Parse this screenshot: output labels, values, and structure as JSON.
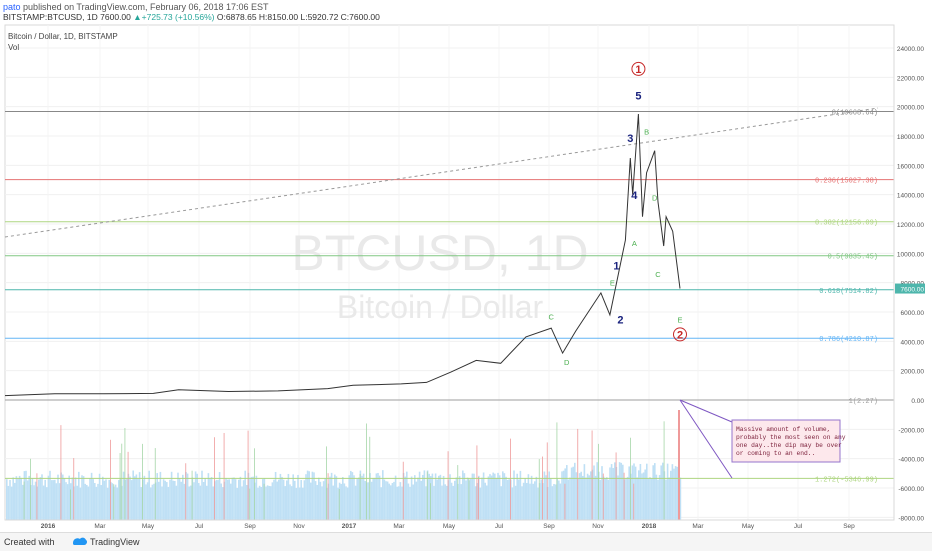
{
  "header": {
    "author": "pato",
    "published": "published on TradingView.com, February 06, 2018 17:06 EST",
    "symbol": "BITSTAMP:BTCUSD, 1D",
    "last": "7600.00",
    "change": "▲+725.73 (+10.56%)",
    "ohlc": "O:6878.65 H:8150.00 L:5920.72 C:7600.00"
  },
  "legend": {
    "series": "Bitcoin / Dollar, 1D, BITSTAMP",
    "volume": "Vol"
  },
  "watermark": {
    "symbol": "BTCUSD, 1D",
    "name": "Bitcoin / Dollar"
  },
  "footer": {
    "created": "Created with",
    "brand": "TradingView"
  },
  "annotation": {
    "text": [
      "Massive amount of volume,",
      "probably the most seen on any",
      "one day..the dip may be over",
      "or coming to an end.."
    ]
  },
  "chart_data": {
    "type": "line",
    "price_axis": {
      "ticks": [
        "24000.00",
        "22000.00",
        "20000.00",
        "18000.00",
        "16000.00",
        "14000.00",
        "12000.00",
        "10000.00",
        "8000.00",
        "6000.00",
        "4000.00",
        "2000.00",
        "0.00",
        "-2000.00",
        "-4000.00",
        "-6000.00",
        "-8000.00"
      ],
      "ylim": [
        -8000,
        24000
      ],
      "last_price_label": "7600.00"
    },
    "time_axis": {
      "ticks": [
        "2016",
        "Mar",
        "May",
        "Jul",
        "Sep",
        "Nov",
        "2017",
        "Mar",
        "May",
        "Jul",
        "Sep",
        "Nov",
        "2018",
        "Mar",
        "May",
        "Jul",
        "Sep"
      ]
    },
    "price": {
      "x": [
        "2015-11",
        "2016-01",
        "2016-03",
        "2016-05",
        "2016-06",
        "2016-08",
        "2016-10",
        "2016-12",
        "2017-01",
        "2017-03",
        "2017-04",
        "2017-05",
        "2017-06",
        "2017-07",
        "2017-08",
        "2017-09",
        "2017-09-15",
        "2017-10",
        "2017-11",
        "2017-11-12",
        "2017-12-01",
        "2017-12-07",
        "2017-12-10",
        "2017-12-17",
        "2017-12-22",
        "2017-12-27",
        "2018-01-06",
        "2018-01-10",
        "2018-01-17",
        "2018-01-20",
        "2018-01-28",
        "2018-02-06"
      ],
      "y": [
        300,
        430,
        420,
        450,
        700,
        580,
        620,
        780,
        1000,
        1100,
        1200,
        1900,
        2700,
        2500,
        4300,
        4900,
        3200,
        4700,
        7300,
        5800,
        10900,
        16500,
        14000,
        19500,
        12500,
        15500,
        17000,
        13500,
        10500,
        12500,
        11500,
        7600
      ]
    },
    "fib_levels": [
      {
        "label": "0(19668.64)",
        "value": 19668.64,
        "color": "#888888"
      },
      {
        "label": "0.236(15027.38)",
        "value": 15027.38,
        "color": "#e57373"
      },
      {
        "label": "0.382(12156.09)",
        "value": 12156.09,
        "color": "#aed581"
      },
      {
        "label": "0.5(9835.45)",
        "value": 9835.45,
        "color": "#81c784"
      },
      {
        "label": "0.618(7514.82)",
        "value": 7514.82,
        "color": "#4db6ac"
      },
      {
        "label": "0.786(4210.87)",
        "value": 4210.87,
        "color": "#64b5f6"
      },
      {
        "label": "1(2.27)",
        "value": 2.27,
        "color": "#9e9e9e"
      },
      {
        "label": "1.272(-5346.99)",
        "value": -5346.99,
        "color": "#aed581"
      }
    ],
    "wave_labels": [
      {
        "text": "1",
        "x": "2017-12-17",
        "y": 22300,
        "color": "#c62828",
        "circled": true
      },
      {
        "text": "5",
        "x": "2017-12-17",
        "y": 20500,
        "color": "#1a237e",
        "circled": false
      },
      {
        "text": "3",
        "x": "2017-12-07",
        "y": 17600,
        "color": "#1a237e",
        "circled": false
      },
      {
        "text": "4",
        "x": "2017-12-12",
        "y": 13700,
        "color": "#1a237e",
        "circled": false
      },
      {
        "text": "1",
        "x": "2017-11-20",
        "y": 8900,
        "color": "#1a237e",
        "circled": false
      },
      {
        "text": "2",
        "x": "2017-11-25",
        "y": 5200,
        "color": "#1a237e",
        "circled": false
      },
      {
        "text": "2",
        "x": "2018-02-06",
        "y": 4200,
        "color": "#c62828",
        "circled": true
      },
      {
        "text": "B",
        "x": "2017-12-27",
        "y": 18100,
        "color": "#4caf50",
        "circled": false
      },
      {
        "text": "D",
        "x": "2018-01-06",
        "y": 13600,
        "color": "#4caf50",
        "circled": false
      },
      {
        "text": "A",
        "x": "2017-12-12",
        "y": 10500,
        "color": "#4caf50",
        "circled": false
      },
      {
        "text": "C",
        "x": "2018-01-10",
        "y": 8400,
        "color": "#4caf50",
        "circled": false
      },
      {
        "text": "E",
        "x": "2018-02-06",
        "y": 5300,
        "color": "#4caf50",
        "circled": false
      },
      {
        "text": "E",
        "x": "2017-11-15",
        "y": 7800,
        "color": "#4caf50",
        "circled": false
      },
      {
        "text": "C",
        "x": "2017-09-01",
        "y": 5500,
        "color": "#4caf50",
        "circled": false
      },
      {
        "text": "D",
        "x": "2017-09-20",
        "y": 2400,
        "color": "#4caf50",
        "circled": false
      }
    ],
    "volume": {
      "note": "histogram pane with bars from 2016 to Feb 2018",
      "x_start": "2015-11",
      "x_end": "2018-02-06",
      "level": "mostly around -6000 baseline, spikes up to -2000"
    },
    "grid": true,
    "legend": "top-left"
  },
  "colors": {
    "price_line": "#333333",
    "volume_area": "#a8d4f0",
    "annotation_border": "#9575cd",
    "annotation_bg": "#fde8ec",
    "annotation_text": "#7b1f3a",
    "trendline": "#999999",
    "axis_text": "#555555"
  }
}
